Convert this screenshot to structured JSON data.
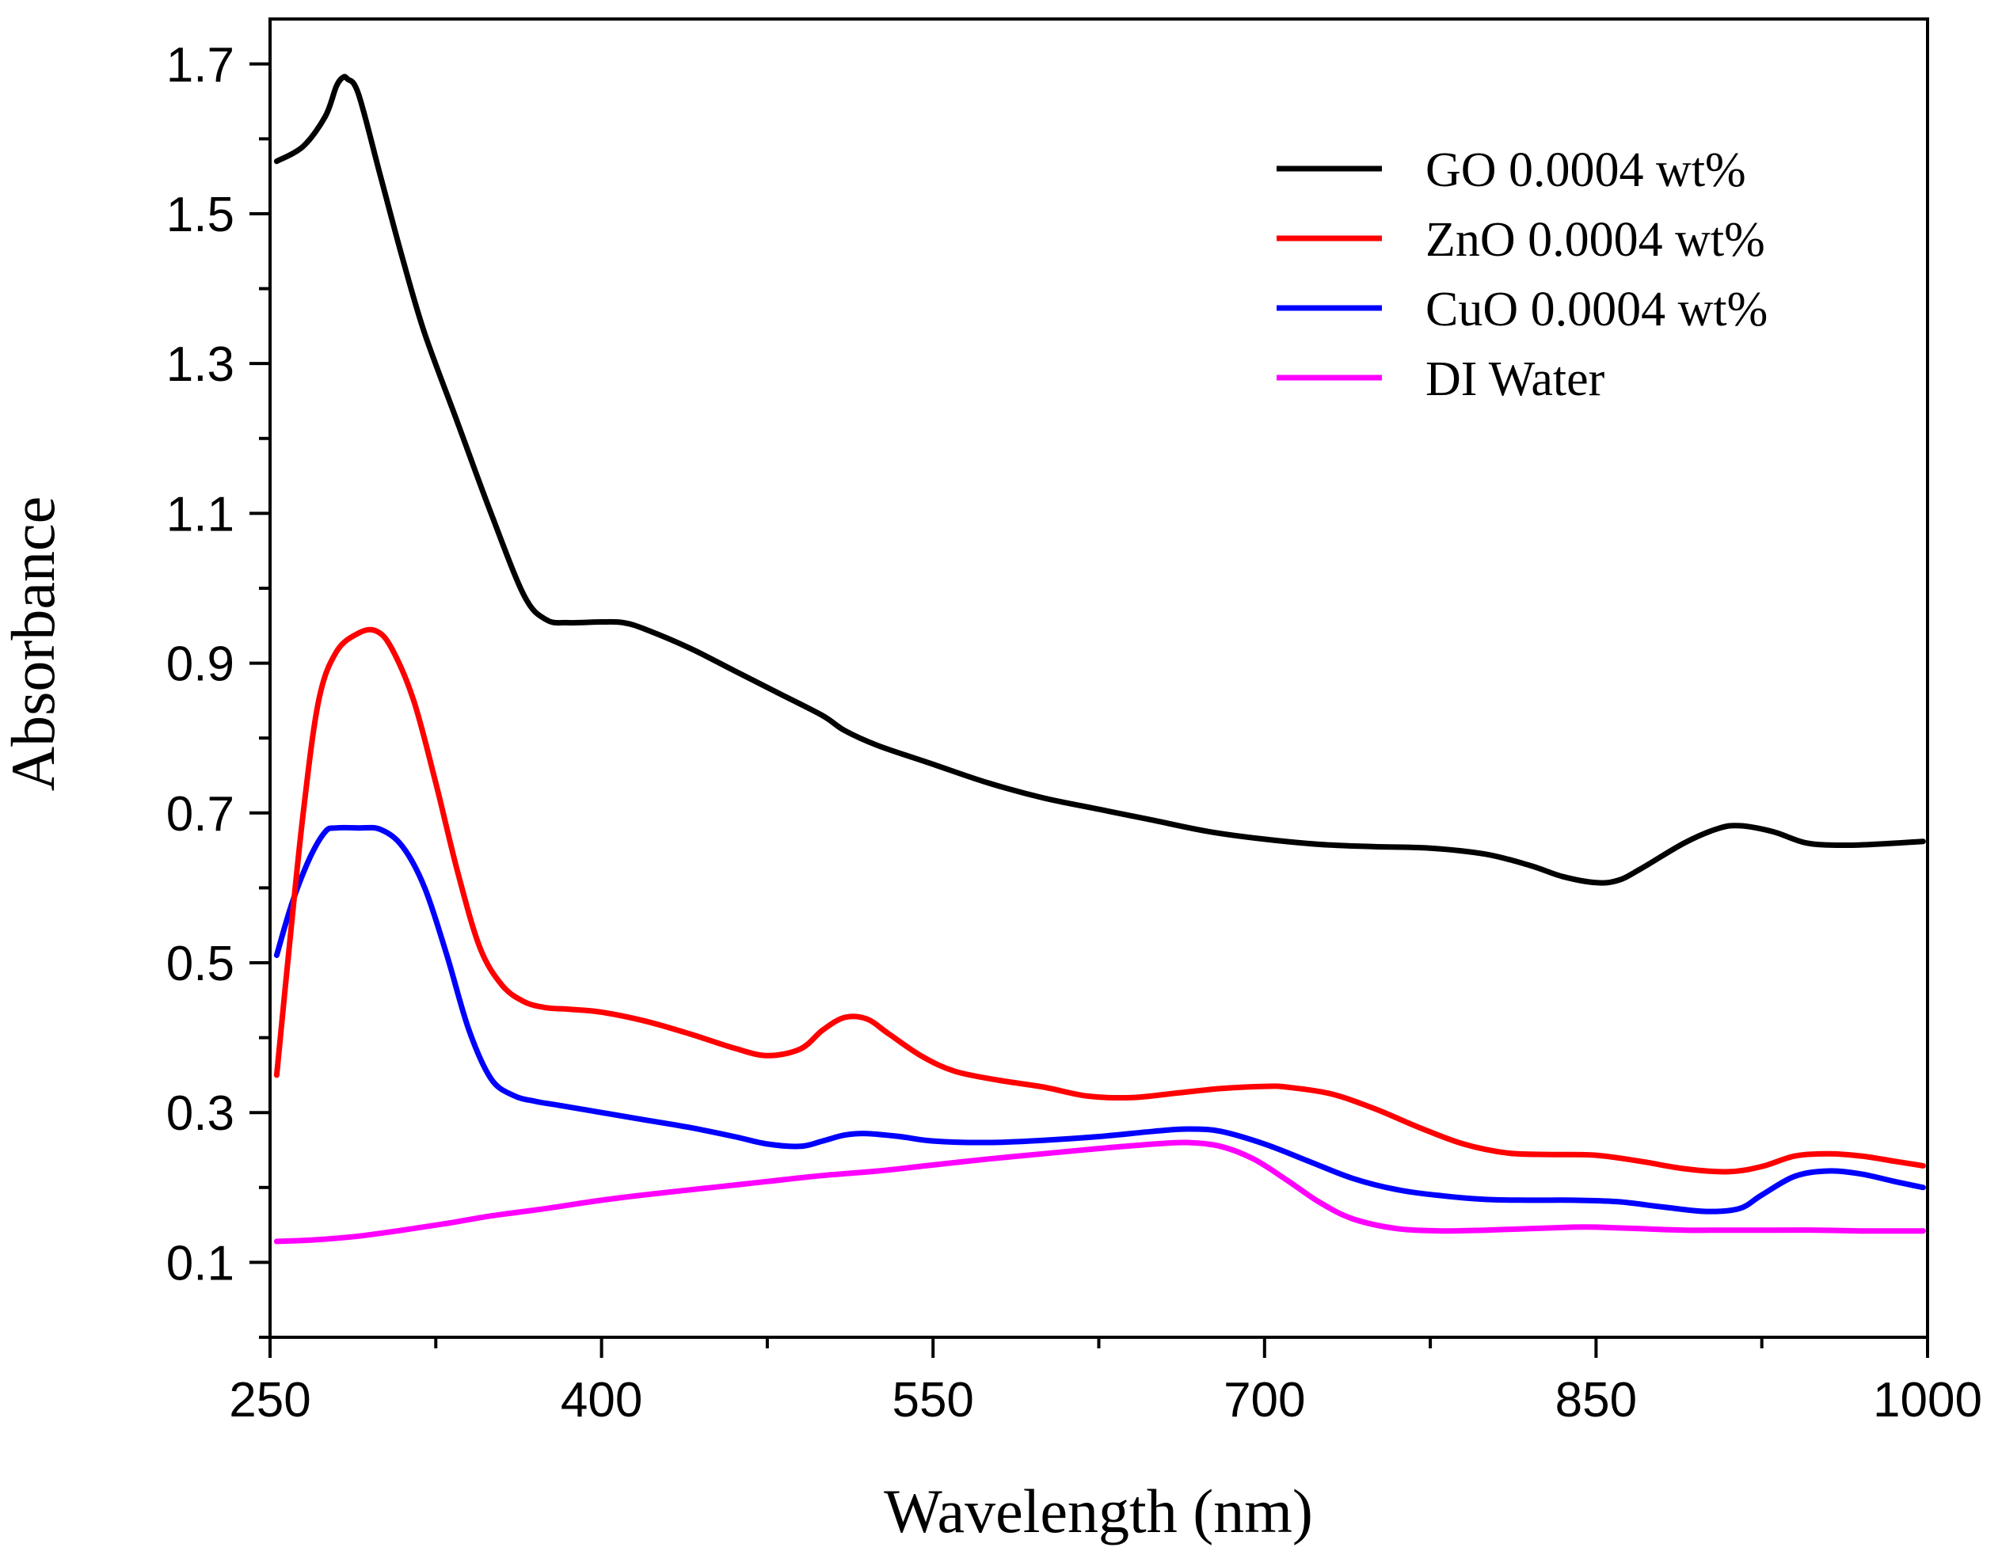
{
  "chart_data": {
    "type": "line",
    "title": "",
    "xlabel": "Wavelength (nm)",
    "ylabel": "Absorbance",
    "xlim": [
      250,
      1000
    ],
    "ylim": [
      0,
      1.76
    ],
    "x_ticks": [
      250,
      400,
      550,
      700,
      850,
      1000
    ],
    "x_tick_labels": [
      "250",
      "400",
      "550",
      "700",
      "850",
      "1000"
    ],
    "y_ticks": [
      0.1,
      0.3,
      0.5,
      0.7,
      0.9,
      1.1,
      1.3,
      1.5,
      1.7
    ],
    "y_tick_labels": [
      "0.1",
      "0.3",
      "0.5",
      "0.7",
      "0.9",
      "1.1",
      "1.3",
      "1.5",
      "1.7"
    ],
    "grid": false,
    "legend_position": "top-right",
    "series": [
      {
        "name": "GO 0.0004 wt%",
        "color": "#000000",
        "x": [
          253,
          265,
          275,
          280,
          283,
          285,
          290,
          300,
          310,
          320,
          335,
          350,
          365,
          375,
          385,
          400,
          410,
          420,
          440,
          460,
          480,
          500,
          510,
          525,
          550,
          575,
          600,
          625,
          650,
          675,
          700,
          725,
          750,
          775,
          800,
          820,
          835,
          850,
          860,
          870,
          890,
          905,
          915,
          930,
          945,
          960,
          975,
          998
        ],
        "y": [
          1.57,
          1.59,
          1.63,
          1.67,
          1.682,
          1.68,
          1.66,
          1.55,
          1.44,
          1.34,
          1.22,
          1.1,
          0.99,
          0.958,
          0.954,
          0.955,
          0.954,
          0.945,
          0.92,
          0.89,
          0.86,
          0.83,
          0.81,
          0.79,
          0.765,
          0.74,
          0.72,
          0.705,
          0.69,
          0.675,
          0.665,
          0.658,
          0.655,
          0.653,
          0.645,
          0.63,
          0.615,
          0.607,
          0.61,
          0.625,
          0.66,
          0.679,
          0.683,
          0.675,
          0.66,
          0.657,
          0.658,
          0.662
        ]
      },
      {
        "name": "ZnO 0.0004 wt%",
        "color": "#ff0000",
        "x": [
          253,
          258,
          265,
          272,
          280,
          290,
          298,
          305,
          315,
          325,
          335,
          345,
          355,
          365,
          375,
          385,
          400,
          420,
          440,
          460,
          475,
          490,
          500,
          510,
          520,
          530,
          545,
          560,
          580,
          600,
          620,
          640,
          660,
          680,
          700,
          710,
          730,
          750,
          770,
          790,
          810,
          830,
          850,
          870,
          890,
          910,
          925,
          940,
          955,
          970,
          985,
          998
        ],
        "y": [
          0.35,
          0.5,
          0.7,
          0.85,
          0.915,
          0.94,
          0.943,
          0.92,
          0.85,
          0.74,
          0.62,
          0.52,
          0.47,
          0.448,
          0.44,
          0.438,
          0.434,
          0.422,
          0.405,
          0.386,
          0.376,
          0.385,
          0.41,
          0.427,
          0.425,
          0.405,
          0.375,
          0.355,
          0.343,
          0.334,
          0.322,
          0.32,
          0.326,
          0.332,
          0.335,
          0.334,
          0.325,
          0.305,
          0.28,
          0.258,
          0.246,
          0.244,
          0.243,
          0.235,
          0.225,
          0.221,
          0.228,
          0.242,
          0.245,
          0.242,
          0.235,
          0.229
        ]
      },
      {
        "name": "CuO 0.0004 wt%",
        "color": "#0000ff",
        "x": [
          253,
          260,
          268,
          275,
          280,
          290,
          300,
          310,
          320,
          330,
          340,
          350,
          360,
          370,
          380,
          400,
          420,
          440,
          460,
          475,
          490,
          500,
          510,
          520,
          535,
          550,
          575,
          600,
          625,
          650,
          665,
          680,
          700,
          720,
          740,
          760,
          780,
          800,
          820,
          840,
          860,
          880,
          900,
          915,
          925,
          940,
          955,
          970,
          985,
          998
        ],
        "y": [
          0.51,
          0.58,
          0.64,
          0.675,
          0.68,
          0.68,
          0.678,
          0.655,
          0.6,
          0.51,
          0.41,
          0.345,
          0.323,
          0.315,
          0.31,
          0.3,
          0.29,
          0.28,
          0.268,
          0.258,
          0.255,
          0.262,
          0.27,
          0.272,
          0.268,
          0.262,
          0.26,
          0.263,
          0.268,
          0.275,
          0.278,
          0.275,
          0.258,
          0.235,
          0.212,
          0.197,
          0.189,
          0.184,
          0.183,
          0.183,
          0.181,
          0.174,
          0.168,
          0.172,
          0.19,
          0.215,
          0.222,
          0.218,
          0.208,
          0.2
        ]
      },
      {
        "name": "DI Water",
        "color": "#ff00ff",
        "x": [
          253,
          270,
          290,
          310,
          330,
          350,
          375,
          400,
          425,
          450,
          475,
          500,
          525,
          550,
          575,
          600,
          625,
          650,
          665,
          680,
          695,
          710,
          725,
          740,
          760,
          780,
          800,
          820,
          840,
          850,
          870,
          890,
          910,
          930,
          950,
          970,
          985,
          998
        ],
        "y": [
          0.128,
          0.13,
          0.135,
          0.143,
          0.152,
          0.162,
          0.172,
          0.183,
          0.192,
          0.2,
          0.208,
          0.216,
          0.222,
          0.23,
          0.238,
          0.245,
          0.252,
          0.258,
          0.26,
          0.255,
          0.238,
          0.21,
          0.18,
          0.158,
          0.145,
          0.142,
          0.143,
          0.145,
          0.147,
          0.147,
          0.145,
          0.143,
          0.143,
          0.143,
          0.143,
          0.142,
          0.142,
          0.142
        ]
      }
    ]
  }
}
